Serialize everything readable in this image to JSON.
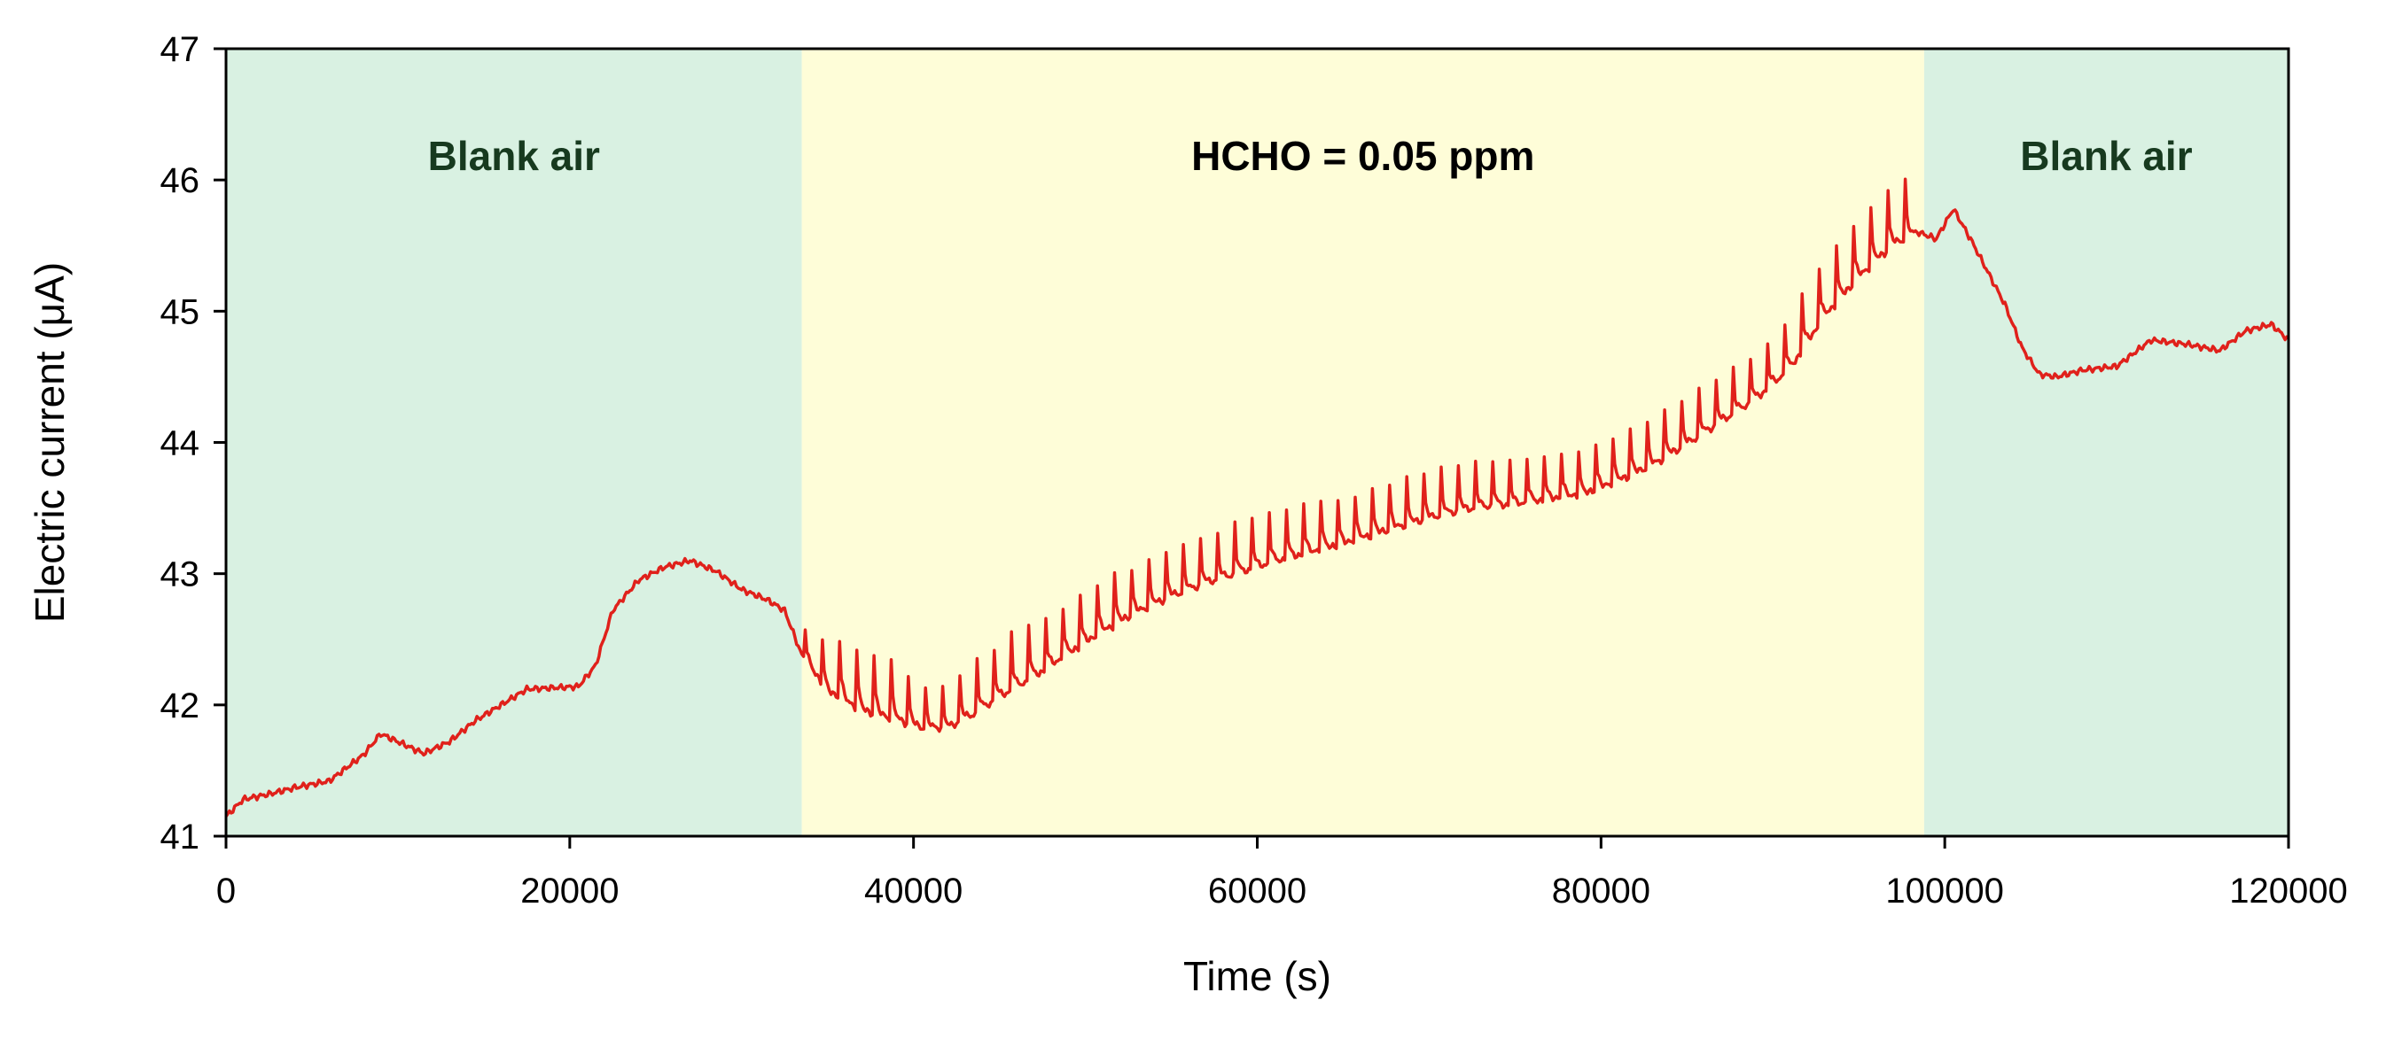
{
  "chart_data": {
    "type": "line",
    "title": "",
    "xlabel": "Time (s)",
    "ylabel": "Electric current (μA)",
    "xlim": [
      0,
      120000
    ],
    "ylim": [
      41,
      47
    ],
    "xticks": [
      0,
      20000,
      40000,
      60000,
      80000,
      100000,
      120000
    ],
    "yticks": [
      41,
      42,
      43,
      44,
      45,
      46,
      47
    ],
    "grid": false,
    "regions": [
      {
        "label": "Blank air",
        "x_start": 0,
        "x_end": 33500,
        "color": "#d9f1e2",
        "label_color": "#173a1f"
      },
      {
        "label": "HCHO = 0.05 ppm",
        "x_start": 33500,
        "x_end": 98800,
        "color": "#fefdd8",
        "label_color": "#000000"
      },
      {
        "label": "Blank air",
        "x_start": 98800,
        "x_end": 120000,
        "color": "#d9f1e2",
        "label_color": "#173a1f"
      }
    ],
    "series": [
      {
        "name": "Electric current",
        "color": "#e0211b",
        "x": [
          0,
          1000,
          2500,
          4000,
          6000,
          8000,
          9000,
          10000,
          11500,
          13000,
          14500,
          16000,
          17500,
          19000,
          20500,
          21500,
          22500,
          24000,
          25500,
          27000,
          28500,
          30000,
          31500,
          32500,
          33500,
          35000,
          37000,
          39000,
          40500,
          42000,
          43500,
          45000,
          47000,
          49000,
          51000,
          53000,
          55000,
          57000,
          59000,
          61000,
          63000,
          65000,
          67000,
          69000,
          71000,
          73000,
          75000,
          77000,
          79000,
          81000,
          83000,
          85000,
          87000,
          89000,
          91000,
          93000,
          95000,
          97000,
          98500,
          99500,
          100500,
          101500,
          102500,
          103500,
          104500,
          105500,
          106500,
          108000,
          110000,
          112000,
          114000,
          116000,
          117500,
          119000,
          120000
        ],
        "values": [
          41.15,
          41.28,
          41.32,
          41.37,
          41.42,
          41.62,
          41.78,
          41.72,
          41.63,
          41.72,
          41.88,
          42.0,
          42.12,
          42.13,
          42.14,
          42.3,
          42.72,
          42.95,
          43.05,
          43.1,
          43.02,
          42.88,
          42.8,
          42.72,
          42.38,
          42.1,
          41.95,
          41.88,
          41.82,
          41.82,
          41.92,
          42.05,
          42.2,
          42.38,
          42.55,
          42.7,
          42.82,
          42.92,
          43.0,
          43.08,
          43.15,
          43.22,
          43.3,
          43.38,
          43.45,
          43.5,
          43.52,
          43.56,
          43.6,
          43.7,
          43.82,
          43.98,
          44.15,
          44.32,
          44.55,
          44.95,
          45.25,
          45.5,
          45.6,
          45.55,
          45.78,
          45.55,
          45.3,
          45.05,
          44.72,
          44.52,
          44.5,
          44.55,
          44.58,
          44.78,
          44.75,
          44.7,
          44.85,
          44.9,
          44.78
        ],
        "spikes": {
          "x_start": 33700,
          "x_end": 98400,
          "interval": 1000,
          "height_uA": [
            0.25,
            0.35,
            0.45,
            0.45,
            0.45,
            0.45,
            0.35,
            0.3,
            0.3,
            0.35,
            0.4,
            0.4,
            0.45,
            0.45,
            0.4,
            0.4,
            0.4,
            0.4,
            0.4,
            0.35,
            0.35,
            0.35,
            0.35,
            0.35,
            0.35,
            0.4,
            0.4,
            0.4,
            0.4,
            0.4,
            0.4,
            0.35,
            0.35,
            0.35,
            0.35,
            0.35,
            0.35,
            0.35,
            0.35,
            0.35,
            0.35,
            0.35,
            0.35,
            0.35,
            0.35,
            0.35,
            0.35,
            0.35,
            0.35,
            0.35,
            0.35,
            0.35,
            0.35,
            0.35,
            0.35,
            0.35,
            0.35,
            0.4,
            0.45,
            0.45,
            0.45,
            0.45,
            0.45,
            0.45,
            0.45
          ]
        }
      }
    ]
  }
}
